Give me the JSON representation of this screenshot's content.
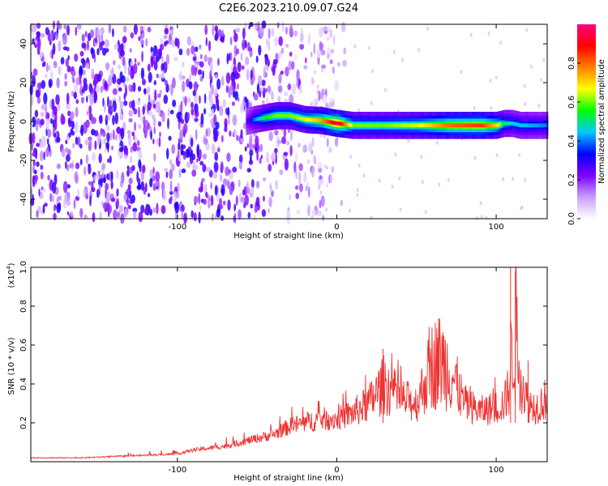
{
  "title": "C2E6.2023.210.09.07.G24",
  "chart_data": [
    {
      "type": "heatmap",
      "xlabel": "Height of straight line (km)",
      "ylabel": "Frequency (Hz)",
      "xlim": [
        -192,
        132
      ],
      "ylim": [
        -50,
        50
      ],
      "xticks": [
        -100,
        0,
        100
      ],
      "yticks": [
        -40,
        -20,
        0,
        20,
        40
      ],
      "xtick_labels": [
        "-100",
        "0",
        "100"
      ],
      "ytick_labels": [
        "-40",
        "-20",
        "0",
        "20",
        "40"
      ],
      "colorbar": {
        "label": "Normalized spectral amplitude",
        "range": [
          0,
          1
        ],
        "ticks": [
          0.0,
          0.2,
          0.4,
          0.6,
          0.8
        ],
        "tick_labels": [
          "0.0",
          "0.2",
          "0.4",
          "0.6",
          "0.8"
        ],
        "colors": [
          "#ffffff",
          "#c8a0ff",
          "#8000ff",
          "#0000ff",
          "#00c8ff",
          "#00ff00",
          "#ffff00",
          "#ff8000",
          "#ff0000",
          "#ff0080"
        ]
      },
      "track": {
        "x": [
          -57,
          -52,
          -45,
          -38,
          -30,
          -20,
          -10,
          0,
          10,
          30,
          50,
          70,
          90,
          100,
          105,
          110,
          115,
          132
        ],
        "y": [
          0,
          1,
          2,
          3,
          3,
          1,
          0.5,
          -1,
          -2,
          -2,
          -2,
          -2,
          -2,
          -2,
          -1,
          -1,
          -2,
          -2
        ],
        "peak_amplitude": [
          0.25,
          0.4,
          0.55,
          0.6,
          0.6,
          0.65,
          0.75,
          0.95,
          0.6,
          0.6,
          0.65,
          0.8,
          0.85,
          0.7,
          0.5,
          0.45,
          0.45,
          0.4
        ]
      },
      "noise_region_x": [
        -192,
        -20
      ],
      "grid": false
    },
    {
      "type": "line",
      "xlabel": "Height of straight line (km)",
      "ylabel": "SNR (10 * v/v)",
      "y_multiplier": "(x10",
      "y_exponent": "4",
      "y_multiplier_close": ")",
      "xlim": [
        -192,
        132
      ],
      "ylim": [
        0,
        1.0
      ],
      "xticks": [
        -100,
        0,
        100
      ],
      "yticks": [
        0.2,
        0.4,
        0.6,
        0.8,
        1.0
      ],
      "xtick_labels": [
        "-100",
        "0",
        "100"
      ],
      "ytick_labels": [
        "0.2",
        "0.4",
        "0.6",
        "0.8",
        "1.0"
      ],
      "series": [
        {
          "color": "#ee3333",
          "x": [
            -192,
            -160,
            -130,
            -100,
            -90,
            -80,
            -70,
            -60,
            -50,
            -40,
            -30,
            -20,
            -10,
            0,
            10,
            20,
            30,
            40,
            50,
            55,
            60,
            65,
            70,
            75,
            80,
            90,
            100,
            105,
            108,
            110,
            112,
            115,
            120,
            125,
            132
          ],
          "y": [
            0.02,
            0.02,
            0.03,
            0.04,
            0.06,
            0.07,
            0.08,
            0.1,
            0.12,
            0.14,
            0.18,
            0.2,
            0.22,
            0.22,
            0.25,
            0.3,
            0.4,
            0.32,
            0.3,
            0.4,
            0.5,
            0.52,
            0.48,
            0.4,
            0.3,
            0.26,
            0.28,
            0.3,
            0.38,
            0.6,
            0.72,
            0.45,
            0.3,
            0.28,
            0.33
          ],
          "spikes": [
            {
              "x": 29,
              "y": 0.58
            },
            {
              "x": 109,
              "y": 1.0
            },
            {
              "x": 112,
              "y": 0.98
            },
            {
              "x": 120,
              "y": 0.52
            }
          ]
        }
      ],
      "grid": false
    }
  ]
}
